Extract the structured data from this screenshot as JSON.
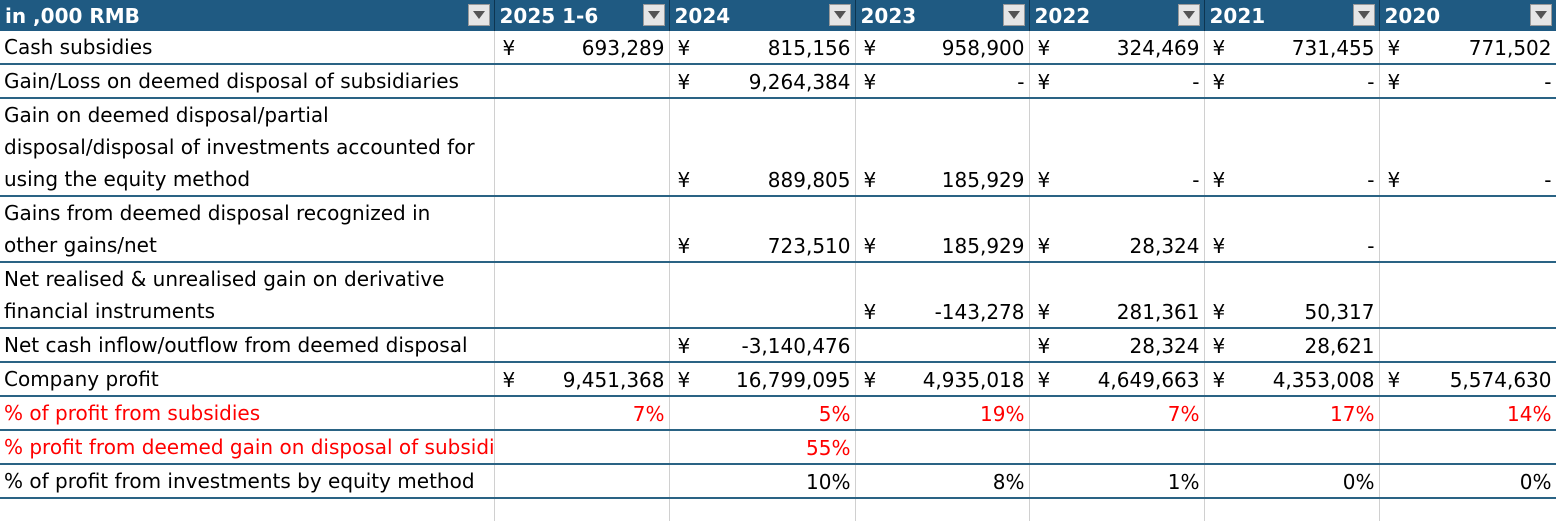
{
  "header": {
    "label": "in ,000 RMB",
    "years": [
      "2025 1-6",
      "2024",
      "2023",
      "2022",
      "2021",
      "2020"
    ]
  },
  "currency_symbol": "¥",
  "rows": [
    {
      "label": "Cash subsidies",
      "cells": [
        {
          "sym": "¥",
          "val": "693,289"
        },
        {
          "sym": "¥",
          "val": "815,156"
        },
        {
          "sym": "¥",
          "val": "958,900"
        },
        {
          "sym": "¥",
          "val": "324,469"
        },
        {
          "sym": "¥",
          "val": "731,455"
        },
        {
          "sym": "¥",
          "val": "771,502"
        }
      ]
    },
    {
      "label": "Gain/Loss on deemed disposal of subsidiaries",
      "cells": [
        {
          "sym": "",
          "val": ""
        },
        {
          "sym": "¥",
          "val": "9,264,384"
        },
        {
          "sym": "¥",
          "val": "-"
        },
        {
          "sym": "¥",
          "val": "-"
        },
        {
          "sym": "¥",
          "val": "-"
        },
        {
          "sym": "¥",
          "val": "-"
        }
      ]
    },
    {
      "label": "Gain on deemed disposal/partial disposal/disposal of investments accounted for using the equity method",
      "cells": [
        {
          "sym": "",
          "val": ""
        },
        {
          "sym": "¥",
          "val": "889,805"
        },
        {
          "sym": "¥",
          "val": "185,929"
        },
        {
          "sym": "¥",
          "val": "-"
        },
        {
          "sym": "¥",
          "val": "-"
        },
        {
          "sym": "¥",
          "val": "-"
        }
      ]
    },
    {
      "label": "Gains from deemed disposal recognized in other gains/net",
      "cells": [
        {
          "sym": "",
          "val": ""
        },
        {
          "sym": "¥",
          "val": "723,510"
        },
        {
          "sym": "¥",
          "val": "185,929"
        },
        {
          "sym": "¥",
          "val": "28,324"
        },
        {
          "sym": "¥",
          "val": "-"
        },
        {
          "sym": "",
          "val": ""
        }
      ]
    },
    {
      "label": "Net realised & unrealised gain on derivative financial instruments",
      "cells": [
        {
          "sym": "",
          "val": ""
        },
        {
          "sym": "",
          "val": ""
        },
        {
          "sym": "¥",
          "val": "-143,278"
        },
        {
          "sym": "¥",
          "val": "281,361"
        },
        {
          "sym": "¥",
          "val": "50,317"
        },
        {
          "sym": "",
          "val": ""
        }
      ]
    },
    {
      "label": "Net cash inflow/outflow from deemed disposal",
      "cells": [
        {
          "sym": "",
          "val": ""
        },
        {
          "sym": "¥",
          "val": "-3,140,476"
        },
        {
          "sym": "",
          "val": ""
        },
        {
          "sym": "¥",
          "val": "28,324"
        },
        {
          "sym": "¥",
          "val": "28,621"
        },
        {
          "sym": "",
          "val": ""
        }
      ]
    },
    {
      "label": "Company profit",
      "cells": [
        {
          "sym": "¥",
          "val": "9,451,368"
        },
        {
          "sym": "¥",
          "val": "16,799,095"
        },
        {
          "sym": "¥",
          "val": "4,935,018"
        },
        {
          "sym": "¥",
          "val": "4,649,663"
        },
        {
          "sym": "¥",
          "val": "4,353,008"
        },
        {
          "sym": "¥",
          "val": "5,574,630"
        }
      ]
    }
  ],
  "pct_rows": [
    {
      "label": "% of profit from subsidies",
      "red": true,
      "cells": [
        "7%",
        "5%",
        "19%",
        "7%",
        "17%",
        "14%"
      ]
    },
    {
      "label": "% profit from deemed gain on disposal of subsidiaries",
      "red": true,
      "cells": [
        "",
        "55%",
        "",
        "",
        "",
        ""
      ]
    },
    {
      "label": "% of profit from investments by equity method",
      "red": false,
      "cells": [
        "",
        "10%",
        "8%",
        "1%",
        "0%",
        "0%"
      ]
    }
  ],
  "colors": {
    "header_bg": "#1f5a82",
    "header_text": "#ffffff",
    "highlight": "#ff0000",
    "row_border": "#2a6384"
  }
}
